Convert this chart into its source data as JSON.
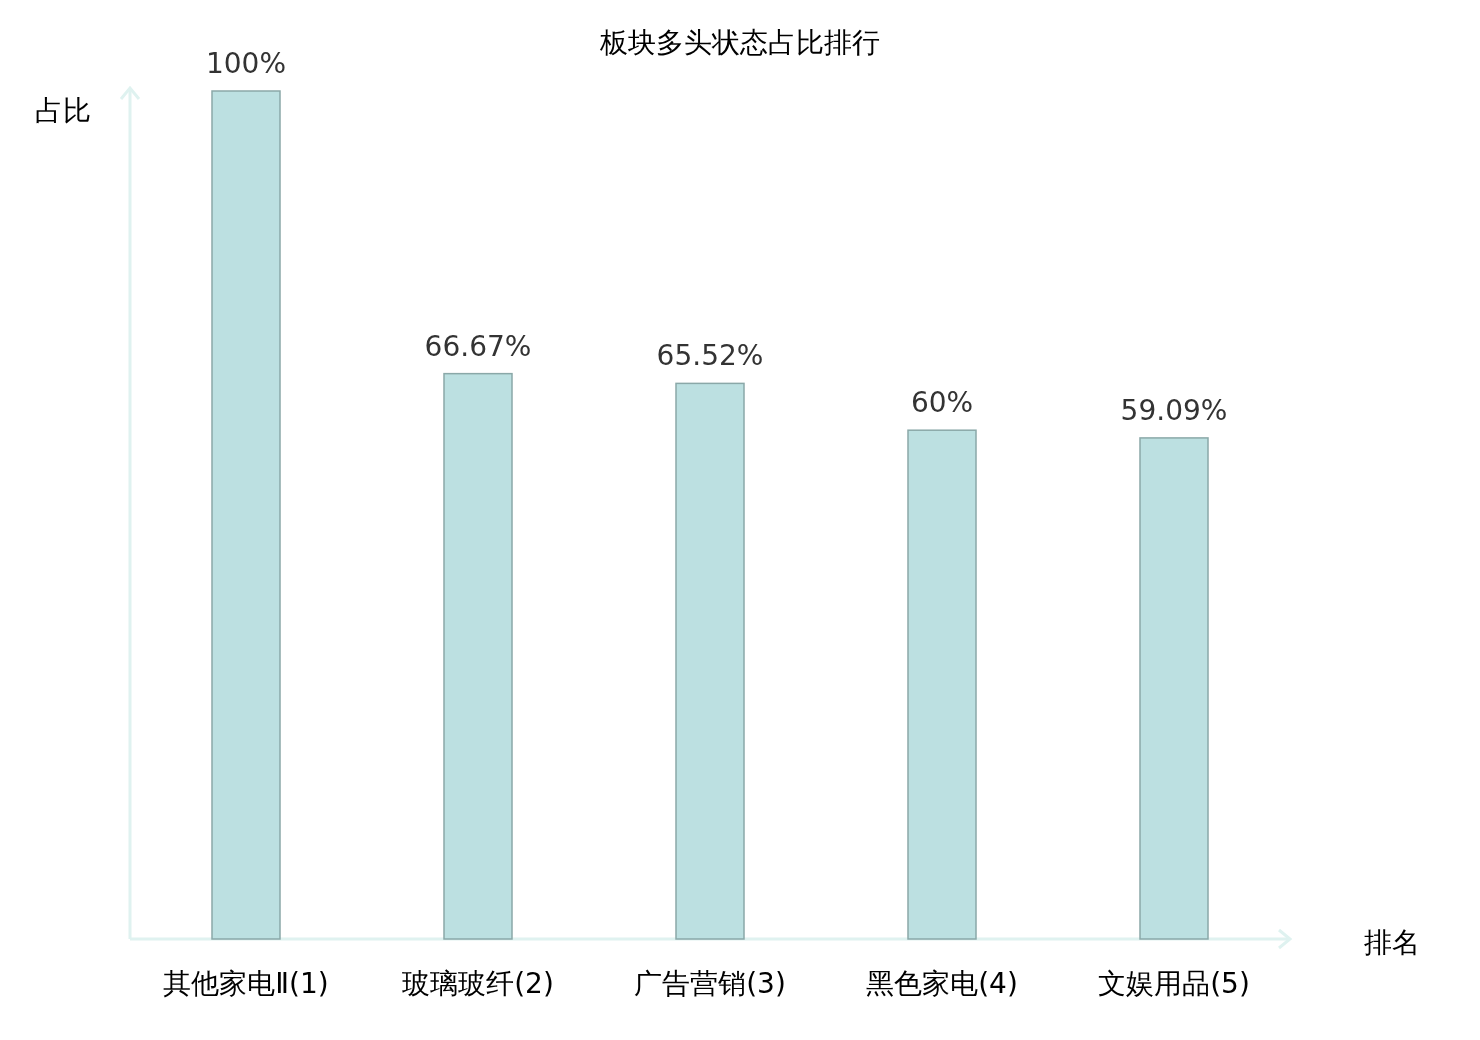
{
  "chart_data": {
    "type": "bar",
    "title": "板块多头状态占比排行",
    "xlabel": "排名",
    "ylabel": "占比",
    "categories": [
      "其他家电Ⅱ(1)",
      "玻璃玻纤(2)",
      "广告营销(3)",
      "黑色家电(4)",
      "文娱用品(5)"
    ],
    "values": [
      100,
      66.67,
      65.52,
      60,
      59.09
    ],
    "value_labels": [
      "100%",
      "66.67%",
      "65.52%",
      "60%",
      "59.09%"
    ],
    "color": "#bce0e1",
    "ylim": [
      0,
      100
    ]
  }
}
